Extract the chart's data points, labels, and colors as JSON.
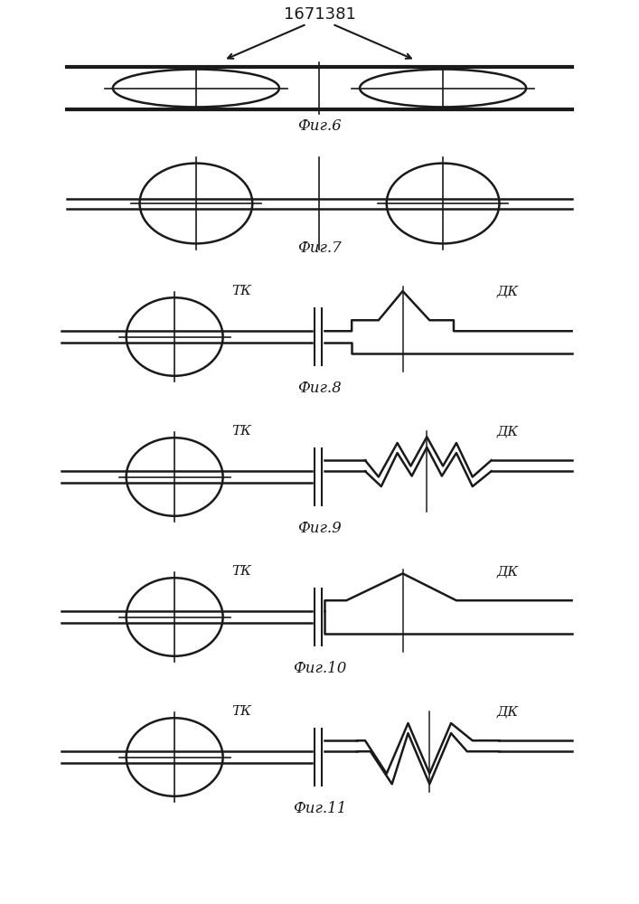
{
  "title": "1671381",
  "fig_labels": [
    "Фиг.6",
    "Фиг.7",
    "Фиг.8",
    "Фиг.9",
    "Фиг.10",
    "Фиг.11"
  ],
  "background_color": "#ffffff",
  "line_color": "#1a1a1a",
  "lw_thin": 1.2,
  "lw_med": 1.8,
  "lw_thick": 3.0
}
